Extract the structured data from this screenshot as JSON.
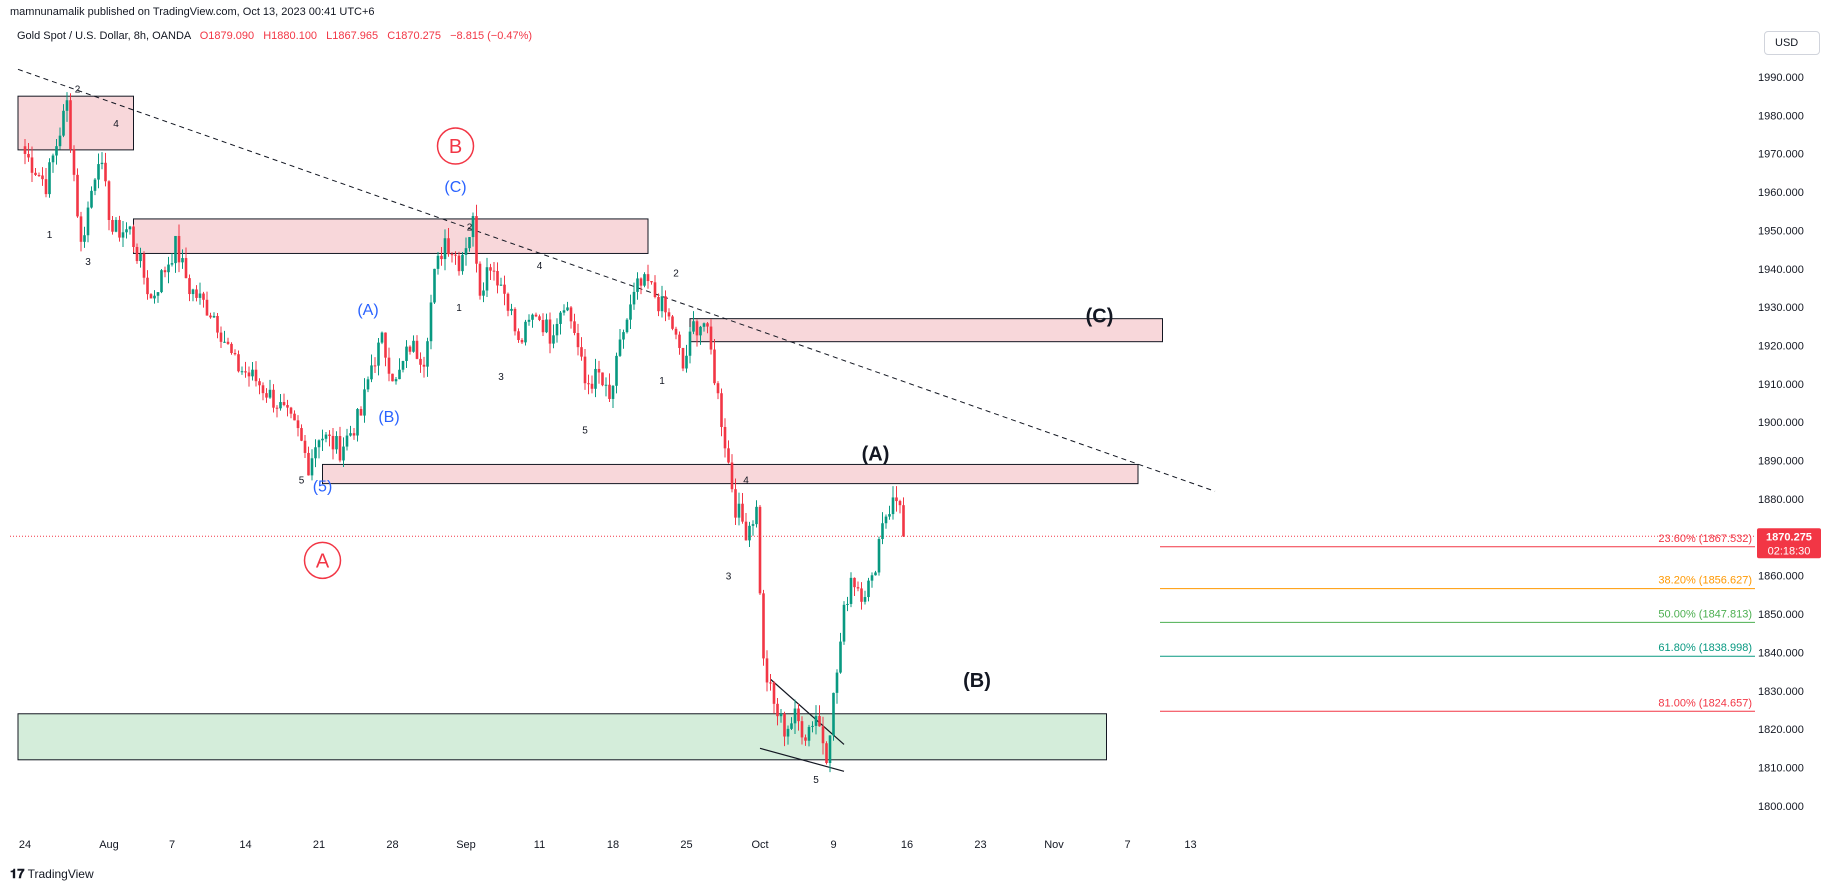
{
  "header": {
    "published": "mamnunamalik published on TradingView.com, Oct 13, 2023 00:41 UTC+6",
    "symbol": "Gold Spot / U.S. Dollar, 8h, OANDA",
    "o_label": "O",
    "o_value": "1879.090",
    "h_label": "H",
    "h_value": "1880.100",
    "l_label": "L",
    "l_value": "1867.965",
    "c_label": "C",
    "c_value": "1870.275",
    "change": "−8.815 (−0.47%)"
  },
  "currency_button": "USD",
  "footer_brand": "TradingView",
  "price_tag": {
    "price": "1870.275",
    "countdown": "02:18:30",
    "value": 1870.275
  },
  "colors": {
    "up": "#089981",
    "down": "#f23645",
    "zone_red": "#f8d7da",
    "zone_green": "#d4edda",
    "fib_236": "#f23645",
    "fib_382": "#ff9800",
    "fib_50": "#4caf50",
    "fib_618": "#089981",
    "fib_81": "#f23645",
    "wave_blue": "#2962ff",
    "wave_red": "#f23645"
  },
  "chart_data": {
    "type": "candlestick",
    "title": "Gold Spot / U.S. Dollar, 8h, OANDA",
    "ylim": [
      1795,
      1995
    ],
    "y_ticks": [
      "1800.000",
      "1810.000",
      "1820.000",
      "1830.000",
      "1840.000",
      "1850.000",
      "1860.000",
      "1870.000",
      "1880.000",
      "1890.000",
      "1900.000",
      "1910.000",
      "1920.000",
      "1930.000",
      "1940.000",
      "1950.000",
      "1960.000",
      "1970.000",
      "1980.000",
      "1990.000"
    ],
    "x_ticks": [
      {
        "label": "24",
        "t": 0
      },
      {
        "label": "Aug",
        "t": 24
      },
      {
        "label": "7",
        "t": 42
      },
      {
        "label": "14",
        "t": 63
      },
      {
        "label": "21",
        "t": 84
      },
      {
        "label": "28",
        "t": 105
      },
      {
        "label": "Sep",
        "t": 126
      },
      {
        "label": "11",
        "t": 147
      },
      {
        "label": "18",
        "t": 168
      },
      {
        "label": "25",
        "t": 189
      },
      {
        "label": "Oct",
        "t": 210
      },
      {
        "label": "9",
        "t": 231
      },
      {
        "label": "16",
        "t": 252
      },
      {
        "label": "23",
        "t": 273
      },
      {
        "label": "Nov",
        "t": 294
      },
      {
        "label": "7",
        "t": 315
      },
      {
        "label": "13",
        "t": 333
      }
    ],
    "anchors": [
      [
        0,
        1970
      ],
      [
        6,
        1962
      ],
      [
        12,
        1983
      ],
      [
        16,
        1946
      ],
      [
        21,
        1970
      ],
      [
        25,
        1950
      ],
      [
        30,
        1950
      ],
      [
        36,
        1932
      ],
      [
        43,
        1946
      ],
      [
        47,
        1935
      ],
      [
        54,
        1928
      ],
      [
        60,
        1915
      ],
      [
        66,
        1911
      ],
      [
        72,
        1905
      ],
      [
        78,
        1897
      ],
      [
        81,
        1889
      ],
      [
        84,
        1897
      ],
      [
        90,
        1893
      ],
      [
        96,
        1902
      ],
      [
        99,
        1915
      ],
      [
        102,
        1921
      ],
      [
        106,
        1910
      ],
      [
        110,
        1920
      ],
      [
        114,
        1917
      ],
      [
        117,
        1938
      ],
      [
        120,
        1948
      ],
      [
        124,
        1942
      ],
      [
        128,
        1952
      ],
      [
        130,
        1935
      ],
      [
        133,
        1942
      ],
      [
        138,
        1932
      ],
      [
        141,
        1920
      ],
      [
        146,
        1929
      ],
      [
        150,
        1923
      ],
      [
        154,
        1932
      ],
      [
        157,
        1924
      ],
      [
        160,
        1910
      ],
      [
        164,
        1912
      ],
      [
        167,
        1905
      ],
      [
        171,
        1924
      ],
      [
        175,
        1935
      ],
      [
        178,
        1936
      ],
      [
        182,
        1930
      ],
      [
        185,
        1925
      ],
      [
        188,
        1914
      ],
      [
        191,
        1925
      ],
      [
        194,
        1926
      ],
      [
        196,
        1918
      ],
      [
        200,
        1895
      ],
      [
        203,
        1878
      ],
      [
        206,
        1872
      ],
      [
        209,
        1877
      ],
      [
        211,
        1837
      ],
      [
        214,
        1826
      ],
      [
        217,
        1820
      ],
      [
        220,
        1823
      ],
      [
        223,
        1819
      ],
      [
        226,
        1824
      ],
      [
        229,
        1814
      ],
      [
        232,
        1835
      ],
      [
        234,
        1850
      ],
      [
        236,
        1860
      ],
      [
        239,
        1856
      ],
      [
        242,
        1858
      ],
      [
        245,
        1875
      ],
      [
        248,
        1879
      ],
      [
        250,
        1880
      ],
      [
        251,
        1870
      ]
    ],
    "fib_levels": [
      {
        "ratio": "23.60%",
        "label": "23.60% (1867.532)",
        "value": 1867.532
      },
      {
        "ratio": "38.20%",
        "label": "38.20% (1856.627)",
        "value": 1856.627
      },
      {
        "ratio": "50.00%",
        "label": "50.00% (1847.813)",
        "value": 1847.813
      },
      {
        "ratio": "61.80%",
        "label": "61.80% (1838.998)",
        "value": 1838.998
      },
      {
        "ratio": "81.00%",
        "label": "81.00% (1824.657)",
        "value": 1824.657
      }
    ],
    "zones": [
      {
        "color": "red",
        "t0": -2,
        "t1": 31,
        "p0": 1985,
        "p1": 1971
      },
      {
        "color": "red",
        "t0": 31,
        "t1": 178,
        "p0": 1953,
        "p1": 1944
      },
      {
        "color": "red",
        "t0": 190,
        "t1": 325,
        "p0": 1927,
        "p1": 1921
      },
      {
        "color": "red",
        "t0": 85,
        "t1": 318,
        "p0": 1889,
        "p1": 1884
      },
      {
        "color": "green",
        "t0": -2,
        "t1": 309,
        "p0": 1824,
        "p1": 1812
      }
    ],
    "trendline": {
      "t0": -2,
      "p0": 1992,
      "t1": 340,
      "p1": 1882
    },
    "wedge": [
      {
        "t0": 213,
        "p0": 1833,
        "t1": 234,
        "p1": 1816
      },
      {
        "t0": 210,
        "p0": 1815,
        "t1": 234,
        "p1": 1809
      }
    ],
    "wave_labels": [
      {
        "text": "2",
        "t": 15,
        "p": 1986,
        "style": "small"
      },
      {
        "text": "4",
        "t": 26,
        "p": 1977,
        "style": "small"
      },
      {
        "text": "1",
        "t": 7,
        "p": 1948,
        "style": "small"
      },
      {
        "text": "3",
        "t": 18,
        "p": 1941,
        "style": "small"
      },
      {
        "text": "5",
        "t": 79,
        "p": 1884,
        "style": "small"
      },
      {
        "text": "(5)",
        "t": 85,
        "p": 1882,
        "style": "blue"
      },
      {
        "text": "(A)",
        "t": 98,
        "p": 1928,
        "style": "blue"
      },
      {
        "text": "(B)",
        "t": 104,
        "p": 1900,
        "style": "blue"
      },
      {
        "text": "(C)",
        "t": 123,
        "p": 1960,
        "style": "blue"
      },
      {
        "text": "2",
        "t": 127,
        "p": 1950,
        "style": "small"
      },
      {
        "text": "1",
        "t": 124,
        "p": 1929,
        "style": "small"
      },
      {
        "text": "3",
        "t": 136,
        "p": 1911,
        "style": "small"
      },
      {
        "text": "4",
        "t": 147,
        "p": 1940,
        "style": "small"
      },
      {
        "text": "5",
        "t": 160,
        "p": 1897,
        "style": "small"
      },
      {
        "text": "2",
        "t": 186,
        "p": 1938,
        "style": "small"
      },
      {
        "text": "1",
        "t": 182,
        "p": 1910,
        "style": "small"
      },
      {
        "text": "4",
        "t": 206,
        "p": 1884,
        "style": "small"
      },
      {
        "text": "3",
        "t": 201,
        "p": 1859,
        "style": "small"
      },
      {
        "text": "5",
        "t": 226,
        "p": 1806,
        "style": "small"
      },
      {
        "text": "(A)",
        "t": 243,
        "p": 1890,
        "style": "big"
      },
      {
        "text": "(B)",
        "t": 272,
        "p": 1831,
        "style": "big"
      },
      {
        "text": "(C)",
        "t": 307,
        "p": 1926,
        "style": "big"
      }
    ],
    "circle_labels": [
      {
        "text": "B",
        "t": 123,
        "p": 1972
      },
      {
        "text": "A",
        "t": 85,
        "p": 1864
      }
    ]
  }
}
